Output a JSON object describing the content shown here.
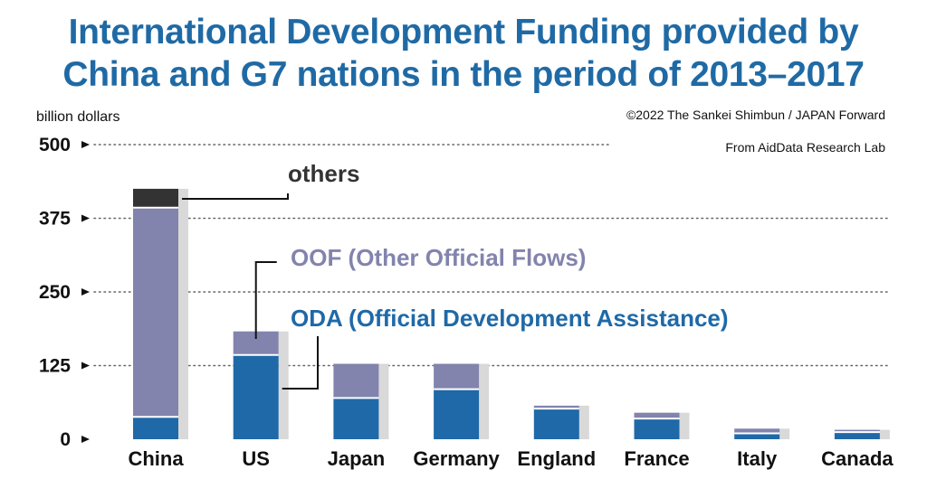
{
  "header": {
    "title_line1": "International Development Funding provided by",
    "title_line2": "China and G7 nations in the period of 2013–2017",
    "unit_label": "billion dollars",
    "credit": "©2022 The Sankei Shimbun / JAPAN Forward",
    "source": "From AidData Research Lab"
  },
  "chart_data": {
    "type": "bar",
    "stacked": true,
    "categories": [
      "China",
      "US",
      "Japan",
      "Germany",
      "England",
      "France",
      "Italy",
      "Canada"
    ],
    "series": [
      {
        "name": "ODA (Official Development Assistance)",
        "color": "#1f69a8",
        "values": [
          38,
          143,
          70,
          85,
          52,
          35,
          10,
          12
        ]
      },
      {
        "name": "OOF (Other Official Flows)",
        "color": "#8284ad",
        "values": [
          355,
          40,
          58,
          43,
          5,
          10,
          8,
          4
        ]
      },
      {
        "name": "others",
        "color": "#333333",
        "values": [
          32,
          0,
          0,
          0,
          0,
          0,
          0,
          0
        ]
      }
    ],
    "yticks": [
      0,
      125,
      250,
      375,
      500
    ],
    "ylim": [
      0,
      500
    ],
    "grid": "dotted"
  }
}
